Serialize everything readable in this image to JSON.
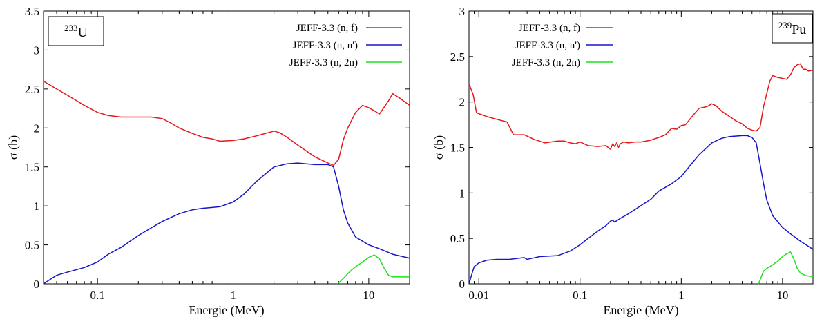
{
  "chart_data": [
    {
      "type": "line",
      "element_label": "233",
      "element_name": "U",
      "xlabel": "Energie (MeV)",
      "ylabel": "σ (b)",
      "xscale": "log",
      "xlim": [
        0.04,
        20
      ],
      "ylim": [
        0,
        3.5
      ],
      "xticks": [
        0.1,
        1,
        10
      ],
      "xtick_labels": [
        "0.1",
        "1",
        "10"
      ],
      "yticks": [
        0,
        0.5,
        1,
        1.5,
        2,
        2.5,
        3,
        3.5
      ],
      "ytick_labels": [
        "0",
        "0.5",
        "1",
        "1.5",
        "2",
        "2.5",
        "3",
        "3.5"
      ],
      "legend_position": "top-right",
      "series": [
        {
          "name": "JEFF-3.3 (n, f)",
          "color": "#e8161b",
          "x": [
            0.04,
            0.05,
            0.06,
            0.07,
            0.08,
            0.1,
            0.12,
            0.15,
            0.2,
            0.25,
            0.3,
            0.35,
            0.4,
            0.5,
            0.6,
            0.7,
            0.8,
            1.0,
            1.2,
            1.5,
            2.0,
            2.2,
            2.5,
            3.0,
            4.0,
            5.0,
            5.5,
            6.0,
            6.5,
            7.0,
            8.0,
            9.0,
            10.0,
            11.0,
            12.0,
            14.0,
            15.0,
            17.0,
            20.0
          ],
          "values": [
            2.6,
            2.5,
            2.42,
            2.35,
            2.29,
            2.2,
            2.16,
            2.14,
            2.14,
            2.14,
            2.12,
            2.06,
            2.0,
            1.93,
            1.88,
            1.86,
            1.83,
            1.84,
            1.86,
            1.9,
            1.96,
            1.94,
            1.88,
            1.78,
            1.63,
            1.55,
            1.52,
            1.6,
            1.85,
            2.0,
            2.2,
            2.29,
            2.26,
            2.22,
            2.18,
            2.35,
            2.44,
            2.38,
            2.29
          ]
        },
        {
          "name": "JEFF-3.3 (n, n')",
          "color": "#1616c8",
          "x": [
            0.04,
            0.045,
            0.05,
            0.06,
            0.08,
            0.1,
            0.12,
            0.15,
            0.2,
            0.25,
            0.3,
            0.4,
            0.5,
            0.6,
            0.7,
            0.8,
            1.0,
            1.2,
            1.5,
            2.0,
            2.5,
            3.0,
            4.0,
            5.0,
            5.5,
            6.0,
            6.5,
            7.0,
            8.0,
            10.0,
            12.0,
            15.0,
            20.0
          ],
          "values": [
            0.0,
            0.06,
            0.11,
            0.15,
            0.21,
            0.28,
            0.38,
            0.47,
            0.62,
            0.72,
            0.8,
            0.9,
            0.95,
            0.97,
            0.98,
            0.99,
            1.05,
            1.15,
            1.32,
            1.5,
            1.54,
            1.55,
            1.53,
            1.53,
            1.5,
            1.25,
            0.95,
            0.78,
            0.6,
            0.5,
            0.45,
            0.38,
            0.33
          ]
        },
        {
          "name": "JEFF-3.3 (n, 2n)",
          "color": "#1ee01e",
          "x": [
            5.9,
            6.5,
            7.0,
            7.5,
            8.0,
            9.0,
            10.0,
            11.0,
            12.0,
            13.0,
            14.0,
            15.0,
            17.0,
            20.0
          ],
          "values": [
            0.0,
            0.07,
            0.13,
            0.18,
            0.22,
            0.28,
            0.34,
            0.37,
            0.32,
            0.2,
            0.11,
            0.09,
            0.09,
            0.09
          ]
        }
      ]
    },
    {
      "type": "line",
      "element_label": "239",
      "element_name": "Pu",
      "xlabel": "Energie (MeV)",
      "ylabel": "σ (b)",
      "xscale": "log",
      "xlim": [
        0.008,
        20
      ],
      "ylim": [
        0,
        3
      ],
      "xticks": [
        0.01,
        0.1,
        1,
        10
      ],
      "xtick_labels": [
        "0.01",
        "0.1",
        "1",
        "10"
      ],
      "yticks": [
        0,
        0.5,
        1,
        1.5,
        2,
        2.5,
        3
      ],
      "ytick_labels": [
        "0",
        "0.5",
        "1",
        "1.5",
        "2",
        "2.5",
        "3"
      ],
      "legend_position": "top-left",
      "series": [
        {
          "name": "JEFF-3.3 (n, f)",
          "color": "#e8161b",
          "x": [
            0.008,
            0.0088,
            0.0095,
            0.012,
            0.015,
            0.019,
            0.022,
            0.028,
            0.035,
            0.045,
            0.06,
            0.07,
            0.08,
            0.09,
            0.1,
            0.12,
            0.15,
            0.18,
            0.2,
            0.21,
            0.22,
            0.23,
            0.24,
            0.25,
            0.27,
            0.3,
            0.35,
            0.4,
            0.5,
            0.6,
            0.7,
            0.8,
            0.9,
            1.0,
            1.1,
            1.3,
            1.5,
            1.8,
            2.0,
            2.2,
            2.5,
            3.0,
            3.5,
            4.0,
            4.5,
            5.0,
            5.5,
            6.0,
            6.5,
            7.5,
            8.0,
            9.0,
            10.0,
            11.0,
            12.0,
            13.0,
            14.0,
            15.0,
            16.0,
            17.0,
            18.0,
            20.0
          ],
          "values": [
            2.2,
            2.08,
            1.88,
            1.84,
            1.81,
            1.78,
            1.64,
            1.64,
            1.59,
            1.55,
            1.57,
            1.57,
            1.55,
            1.54,
            1.56,
            1.52,
            1.51,
            1.52,
            1.48,
            1.54,
            1.51,
            1.55,
            1.5,
            1.54,
            1.56,
            1.55,
            1.56,
            1.56,
            1.58,
            1.61,
            1.64,
            1.71,
            1.7,
            1.74,
            1.75,
            1.85,
            1.93,
            1.95,
            1.98,
            1.96,
            1.9,
            1.84,
            1.79,
            1.76,
            1.71,
            1.69,
            1.68,
            1.72,
            1.95,
            2.23,
            2.29,
            2.27,
            2.26,
            2.25,
            2.3,
            2.38,
            2.41,
            2.42,
            2.36,
            2.36,
            2.34,
            2.35
          ]
        },
        {
          "name": "JEFF-3.3 (n, n')",
          "color": "#1616c8",
          "x": [
            0.008,
            0.0085,
            0.009,
            0.01,
            0.012,
            0.015,
            0.02,
            0.028,
            0.03,
            0.04,
            0.06,
            0.08,
            0.1,
            0.12,
            0.15,
            0.18,
            0.2,
            0.21,
            0.22,
            0.25,
            0.3,
            0.4,
            0.5,
            0.6,
            0.8,
            1.0,
            1.2,
            1.5,
            2.0,
            2.5,
            3.0,
            4.0,
            4.5,
            5.0,
            5.5,
            6.0,
            6.5,
            7.0,
            8.0,
            10.0,
            12.0,
            15.0,
            20.0
          ],
          "values": [
            0.0,
            0.1,
            0.19,
            0.23,
            0.26,
            0.27,
            0.27,
            0.29,
            0.27,
            0.3,
            0.31,
            0.36,
            0.43,
            0.5,
            0.58,
            0.64,
            0.69,
            0.7,
            0.68,
            0.72,
            0.77,
            0.86,
            0.93,
            1.02,
            1.1,
            1.18,
            1.29,
            1.42,
            1.55,
            1.6,
            1.62,
            1.63,
            1.63,
            1.61,
            1.55,
            1.32,
            1.1,
            0.92,
            0.75,
            0.62,
            0.55,
            0.47,
            0.38
          ]
        },
        {
          "name": "JEFF-3.3 (n, 2n)",
          "color": "#1ee01e",
          "x": [
            5.8,
            6.5,
            7.0,
            7.5,
            8.0,
            9.0,
            10.0,
            11.0,
            12.0,
            13.0,
            14.0,
            15.0,
            17.0,
            20.0
          ],
          "values": [
            0.0,
            0.14,
            0.17,
            0.19,
            0.21,
            0.25,
            0.3,
            0.33,
            0.35,
            0.27,
            0.17,
            0.12,
            0.09,
            0.08
          ]
        }
      ]
    }
  ]
}
